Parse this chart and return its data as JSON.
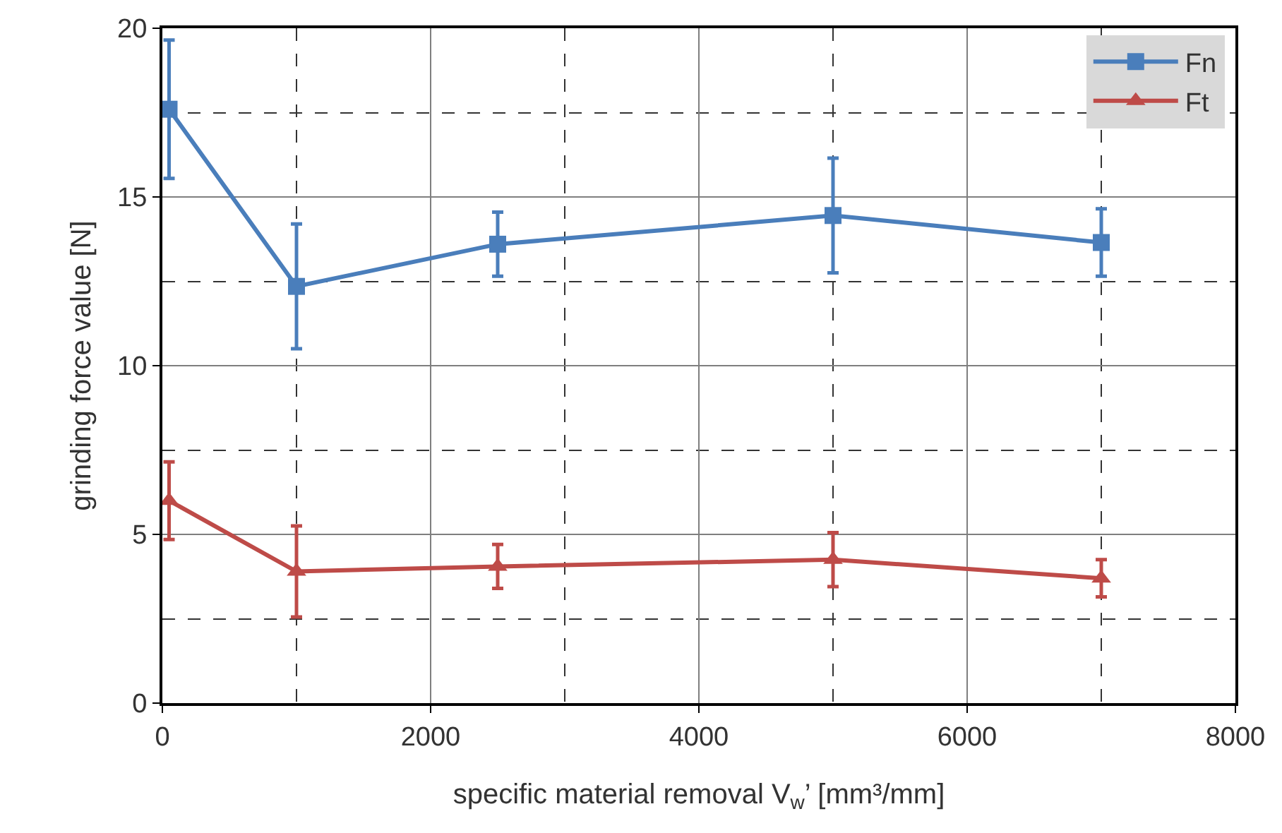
{
  "chart_data": {
    "type": "line",
    "xlabel": "specific material removal V$_{w}$’ [mm³/mm]",
    "ylabel": "grinding force value [N]",
    "x": [
      50,
      1000,
      2500,
      5000,
      7000
    ],
    "series": [
      {
        "name": "Fn",
        "color": "#4a7ebb",
        "marker": "square",
        "values": [
          17.6,
          12.35,
          13.6,
          14.45,
          13.65
        ],
        "errors": [
          2.05,
          1.85,
          0.95,
          1.7,
          1.0
        ]
      },
      {
        "name": "Ft",
        "color": "#be4b48",
        "marker": "triangle",
        "values": [
          6.0,
          3.9,
          4.05,
          4.25,
          3.7
        ],
        "errors": [
          1.15,
          1.35,
          0.65,
          0.8,
          0.55
        ]
      }
    ],
    "xlim": [
      0,
      8000
    ],
    "xticks": [
      0,
      2000,
      4000,
      6000,
      8000
    ],
    "ylim": [
      0,
      20
    ],
    "yticks": [
      0,
      5,
      10,
      15,
      20
    ],
    "grid": true,
    "legend": "top right",
    "line_style": "solid"
  }
}
